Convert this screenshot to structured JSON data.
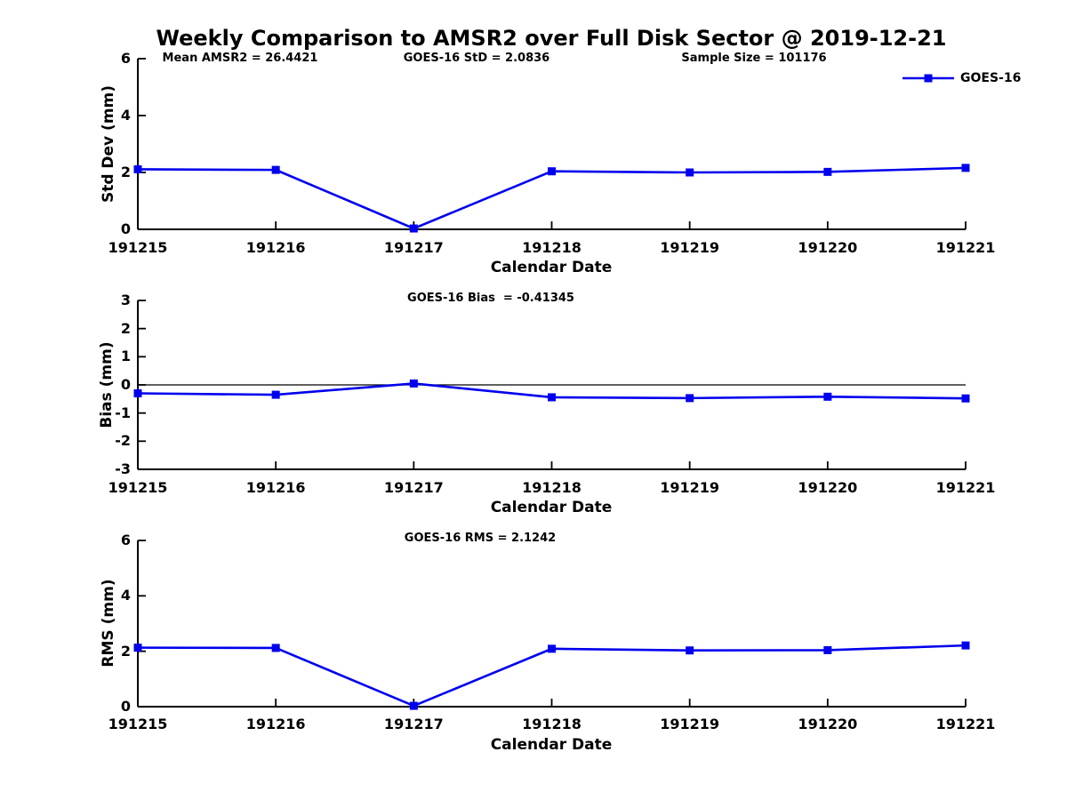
{
  "figure": {
    "title": "Weekly Comparison to AMSR2 over Full Disk Sector @ 2019-12-21"
  },
  "legend": {
    "label": "GOES-16",
    "position": "top-right",
    "series_color": "#0000ee"
  },
  "chart_data": [
    {
      "type": "line",
      "annotations": [
        "Mean AMSR2 = 26.4421",
        "GOES-16 StD = 2.0836",
        "Sample Size = 101176"
      ],
      "xlabel": "Calendar Date",
      "ylabel": "Std Dev (mm)",
      "x_categories": [
        "191215",
        "191216",
        "191217",
        "191218",
        "191219",
        "191220",
        "191221"
      ],
      "series": [
        {
          "name": "GOES-16",
          "color": "#0000ee",
          "marker": "square",
          "values": [
            2.11,
            2.09,
            0.03,
            2.04,
            2.0,
            2.02,
            2.16
          ]
        }
      ],
      "ylim": [
        0,
        6
      ],
      "yticks": [
        0,
        2,
        4,
        6
      ],
      "grid": false,
      "zero_line": false
    },
    {
      "type": "line",
      "annotations": [
        "GOES-16 Bias  = -0.41345"
      ],
      "xlabel": "Calendar Date",
      "ylabel": "Bias (mm)",
      "x_categories": [
        "191215",
        "191216",
        "191217",
        "191218",
        "191219",
        "191220",
        "191221"
      ],
      "series": [
        {
          "name": "GOES-16",
          "color": "#0000ee",
          "marker": "square",
          "values": [
            -0.3,
            -0.35,
            0.05,
            -0.44,
            -0.47,
            -0.42,
            -0.48
          ]
        }
      ],
      "ylim": [
        -3,
        3
      ],
      "yticks": [
        -3,
        -2,
        -1,
        0,
        1,
        2,
        3
      ],
      "grid": false,
      "zero_line": true
    },
    {
      "type": "line",
      "annotations": [
        "GOES-16 RMS = 2.1242"
      ],
      "xlabel": "Calendar Date",
      "ylabel": "RMS (mm)",
      "x_categories": [
        "191215",
        "191216",
        "191217",
        "191218",
        "191219",
        "191220",
        "191221"
      ],
      "series": [
        {
          "name": "GOES-16",
          "color": "#0000ee",
          "marker": "square",
          "values": [
            2.13,
            2.12,
            0.03,
            2.09,
            2.03,
            2.04,
            2.21
          ]
        }
      ],
      "ylim": [
        0,
        6
      ],
      "yticks": [
        0,
        2,
        4,
        6
      ],
      "grid": false,
      "zero_line": false
    }
  ]
}
